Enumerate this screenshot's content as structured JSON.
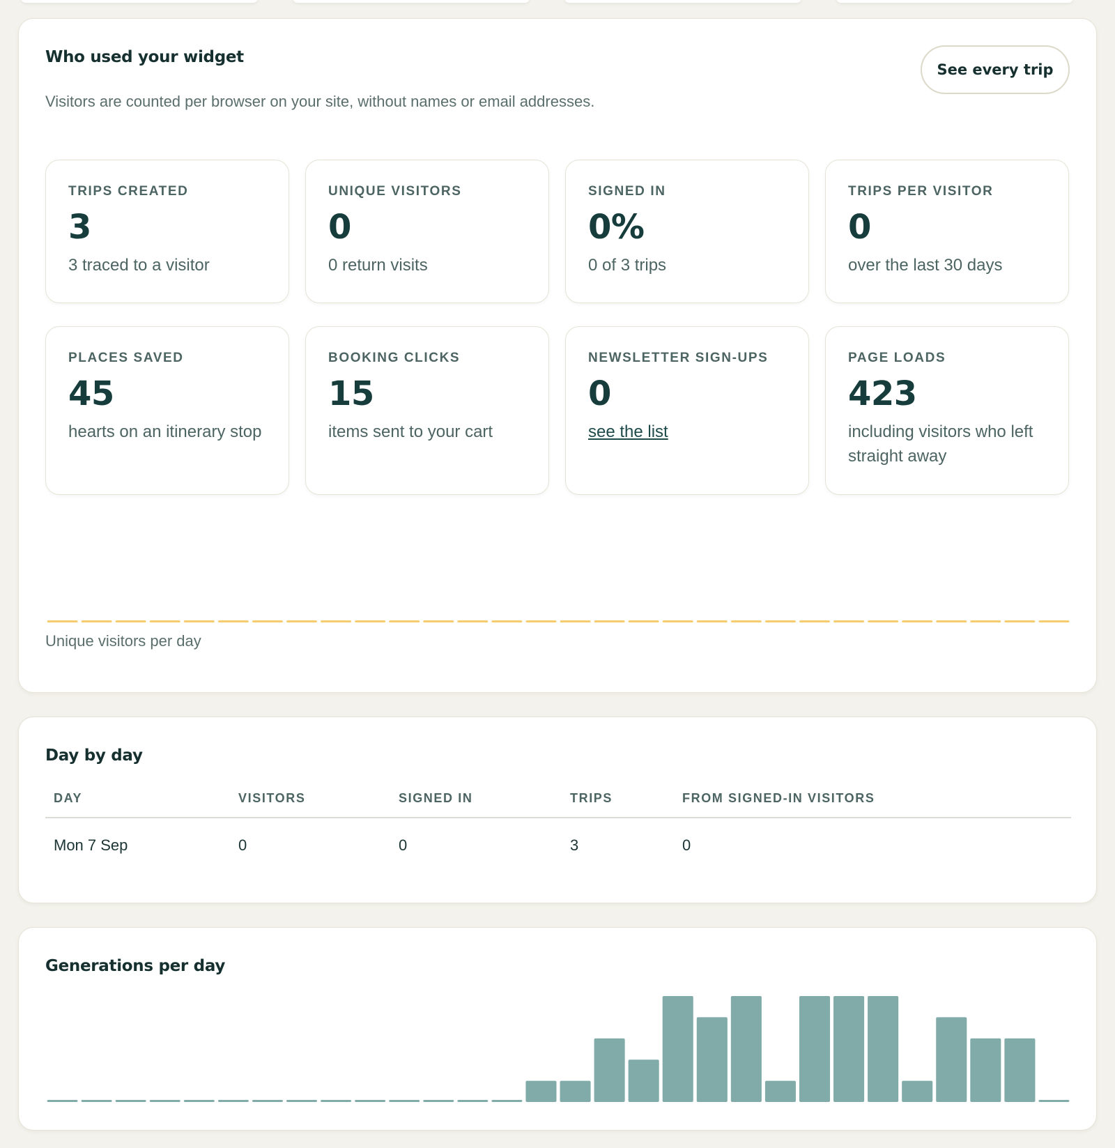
{
  "widget_card": {
    "title": "Who used your widget",
    "subtitle": "Visitors are counted per browser on your site, without names or email addresses.",
    "see_all_button": "See every trip",
    "stats": [
      {
        "label": "TRIPS CREATED",
        "value": "3",
        "note": "3 traced to a visitor"
      },
      {
        "label": "UNIQUE VISITORS",
        "value": "0",
        "note": "0 return visits"
      },
      {
        "label": "SIGNED IN",
        "value": "0%",
        "note": "0 of 3 trips"
      },
      {
        "label": "TRIPS PER VISITOR",
        "value": "0",
        "note": "over the last 30 days"
      },
      {
        "label": "PLACES SAVED",
        "value": "45",
        "note": "hearts on an itinerary stop"
      },
      {
        "label": "BOOKING CLICKS",
        "value": "15",
        "note": "items sent to your cart"
      },
      {
        "label": "NEWSLETTER SIGN-UPS",
        "value": "0",
        "link": "see the list"
      },
      {
        "label": "PAGE LOADS",
        "value": "423",
        "note": "including visitors who left straight away"
      }
    ],
    "visitors_chart_caption": "Unique visitors per day",
    "visitors_bar_color": "#f5cc6e"
  },
  "day_by_day": {
    "title": "Day by day",
    "columns": [
      "DAY",
      "VISITORS",
      "SIGNED IN",
      "TRIPS",
      "FROM SIGNED-IN VISITORS"
    ],
    "rows": [
      [
        "Mon 7 Sep",
        "0",
        "0",
        "3",
        "0"
      ]
    ]
  },
  "generations_card": {
    "title": "Generations per day",
    "bar_color": "#80aba9"
  },
  "chart_data": [
    {
      "type": "bar",
      "values": [
        0,
        0,
        0,
        0,
        0,
        0,
        0,
        0,
        0,
        0,
        0,
        0,
        0,
        0,
        0,
        0,
        0,
        0,
        0,
        0,
        0,
        0,
        0,
        0,
        0,
        0,
        0,
        0,
        0,
        0
      ]
    },
    {
      "type": "bar",
      "values": [
        0,
        0,
        0,
        0,
        0,
        0,
        0,
        0,
        0,
        0,
        0,
        0,
        0,
        0,
        1,
        1,
        3,
        2,
        5,
        4,
        5,
        1,
        5,
        5,
        5,
        1,
        4,
        3,
        3,
        0
      ],
      "ylim": [
        0,
        5
      ]
    }
  ]
}
